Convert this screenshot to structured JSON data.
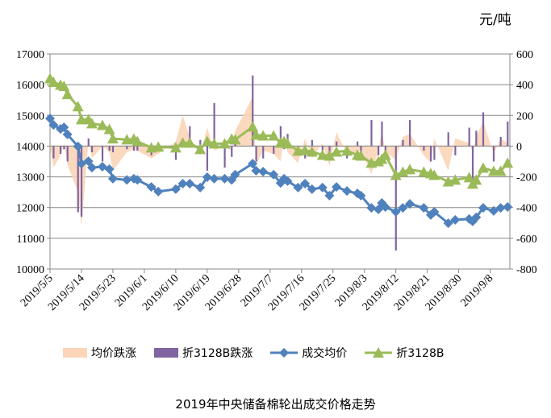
{
  "chart_data": {
    "type": "line",
    "title": "2019年中央储备棉轮出成交价格走势",
    "unit_right": "元/吨",
    "left_axis": {
      "ylim": [
        10000,
        17000
      ],
      "ticks": [
        "10000",
        "11000",
        "12000",
        "13000",
        "14000",
        "15000",
        "16000",
        "17000"
      ]
    },
    "right_axis": {
      "ylim": [
        -800,
        600
      ],
      "ticks": [
        "-800",
        "-600",
        "-400",
        "-200",
        "0",
        "200",
        "400",
        "600"
      ]
    },
    "x_ticks": [
      "2019/5/5",
      "2019/5/14",
      "2019/5/23",
      "2019/6/1",
      "2019/6/10",
      "2019/6/19",
      "2019/6/28",
      "2019/7/7",
      "2019/7/16",
      "2019/7/25",
      "2019/8/3",
      "2019/8/12",
      "2019/8/21",
      "2019/8/30",
      "2019/9/8"
    ],
    "grid": true,
    "legend_placement": "bottom",
    "dates": [
      "2019-05-05",
      "2019-05-06",
      "2019-05-08",
      "2019-05-09",
      "2019-05-10",
      "2019-05-13",
      "2019-05-14",
      "2019-05-16",
      "2019-05-17",
      "2019-05-20",
      "2019-05-22",
      "2019-05-23",
      "2019-05-27",
      "2019-05-29",
      "2019-05-30",
      "2019-06-03",
      "2019-06-05",
      "2019-06-10",
      "2019-06-12",
      "2019-06-14",
      "2019-06-17",
      "2019-06-19",
      "2019-06-21",
      "2019-06-24",
      "2019-06-26",
      "2019-06-27",
      "2019-07-02",
      "2019-07-03",
      "2019-07-05",
      "2019-07-08",
      "2019-07-10",
      "2019-07-11",
      "2019-07-12",
      "2019-07-15",
      "2019-07-17",
      "2019-07-19",
      "2019-07-22",
      "2019-07-24",
      "2019-07-26",
      "2019-07-29",
      "2019-08-01",
      "2019-08-02",
      "2019-08-05",
      "2019-08-07",
      "2019-08-08",
      "2019-08-09",
      "2019-08-12",
      "2019-08-14",
      "2019-08-16",
      "2019-08-20",
      "2019-08-22",
      "2019-08-23",
      "2019-08-27",
      "2019-08-29",
      "2019-09-02",
      "2019-09-03",
      "2019-09-04",
      "2019-09-06",
      "2019-09-09",
      "2019-09-11",
      "2019-09-13"
    ],
    "series": [
      {
        "name": "均价跌涨",
        "axis": "right",
        "kind": "area",
        "color": "#FAD5B8",
        "values": [
          0,
          -140,
          -60,
          20,
          -120,
          -300,
          -520,
          30,
          -80,
          0,
          -40,
          -160,
          -40,
          -20,
          -30,
          -80,
          -50,
          30,
          200,
          60,
          -60,
          120,
          -30,
          0,
          -30,
          100,
          320,
          -120,
          -30,
          -50,
          -100,
          60,
          -40,
          -110,
          50,
          -80,
          20,
          -130,
          90,
          -50,
          -40,
          -30,
          -180,
          -30,
          100,
          -40,
          -90,
          60,
          80,
          -60,
          -110,
          50,
          -160,
          50,
          20,
          -40,
          60,
          160,
          -50,
          50,
          20
        ]
      },
      {
        "name": "折3128B跌涨",
        "axis": "right",
        "kind": "bar",
        "color": "#8064A2",
        "values": [
          0,
          -80,
          -50,
          -20,
          -100,
          -430,
          -460,
          50,
          -40,
          -100,
          -30,
          -40,
          -20,
          -30,
          -30,
          -60,
          10,
          -90,
          10,
          130,
          40,
          -160,
          280,
          -140,
          -70,
          50,
          460,
          -100,
          -80,
          -50,
          130,
          -20,
          80,
          -30,
          -80,
          40,
          -30,
          -40,
          30,
          -80,
          30,
          -60,
          170,
          -60,
          160,
          -40,
          -680,
          40,
          170,
          -30,
          -100,
          -90,
          90,
          -60,
          120,
          -230,
          100,
          220,
          -100,
          60,
          160
        ]
      },
      {
        "name": "成交均价",
        "axis": "left",
        "kind": "line",
        "marker": "diamond",
        "color": "#4F81BD",
        "values": [
          14900,
          14690,
          14560,
          14610,
          14380,
          13990,
          13430,
          13510,
          13300,
          13330,
          13250,
          12940,
          12900,
          12940,
          12900,
          12670,
          12520,
          12600,
          12780,
          12780,
          12650,
          12990,
          12940,
          12940,
          12900,
          13070,
          13430,
          13200,
          13170,
          13070,
          12800,
          12940,
          12860,
          12650,
          12780,
          12600,
          12650,
          12390,
          12670,
          12540,
          12460,
          12390,
          11990,
          11940,
          12150,
          12020,
          11860,
          11990,
          12120,
          11990,
          11760,
          11860,
          11490,
          11600,
          11630,
          11550,
          11680,
          11990,
          11890,
          11990,
          12020
        ]
      },
      {
        "name": "折3128B",
        "axis": "right",
        "kind": "line",
        "marker": "triangle",
        "color": "#9BBB59",
        "values": [
          440,
          416,
          398,
          390,
          337,
          258,
          173,
          173,
          147,
          136,
          110,
          49,
          42,
          47,
          31,
          -10,
          -5,
          -10,
          21,
          21,
          -21,
          31,
          16,
          16,
          47,
          42,
          126,
          73,
          68,
          68,
          21,
          31,
          16,
          -31,
          -26,
          -37,
          -58,
          -63,
          -37,
          -31,
          -58,
          -63,
          -110,
          -100,
          -84,
          -58,
          -189,
          -168,
          -152,
          -168,
          -178,
          -189,
          -231,
          -220,
          -204,
          -246,
          -220,
          -142,
          -163,
          -163,
          -110
        ]
      }
    ]
  }
}
